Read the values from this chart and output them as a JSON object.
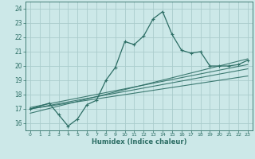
{
  "xlabel": "Humidex (Indice chaleur)",
  "bg_color": "#cce8e8",
  "grid_color": "#aacccc",
  "line_color": "#2d6e65",
  "xlim": [
    -0.5,
    23.5
  ],
  "ylim": [
    15.5,
    24.5
  ],
  "xticks": [
    0,
    1,
    2,
    3,
    4,
    5,
    6,
    7,
    8,
    9,
    10,
    11,
    12,
    13,
    14,
    15,
    16,
    17,
    18,
    19,
    20,
    21,
    22,
    23
  ],
  "yticks": [
    16,
    17,
    18,
    19,
    20,
    21,
    22,
    23,
    24
  ],
  "main_line": {
    "x": [
      0,
      2,
      3,
      4,
      5,
      6,
      7,
      8,
      9,
      10,
      11,
      12,
      13,
      14,
      15,
      16,
      17,
      18,
      19,
      20,
      21,
      22,
      23
    ],
    "y": [
      17.0,
      17.4,
      16.6,
      15.8,
      16.3,
      17.3,
      17.6,
      19.0,
      19.9,
      21.7,
      21.5,
      22.1,
      23.3,
      23.8,
      22.2,
      21.1,
      20.9,
      21.0,
      20.0,
      20.0,
      20.0,
      20.1,
      20.4
    ]
  },
  "reg_lines": [
    {
      "x": [
        0,
        23
      ],
      "y": [
        17.0,
        19.8
      ]
    },
    {
      "x": [
        0,
        23
      ],
      "y": [
        17.0,
        19.3
      ]
    },
    {
      "x": [
        0,
        23
      ],
      "y": [
        17.1,
        20.1
      ]
    },
    {
      "x": [
        0,
        23
      ],
      "y": [
        16.7,
        20.5
      ]
    }
  ]
}
